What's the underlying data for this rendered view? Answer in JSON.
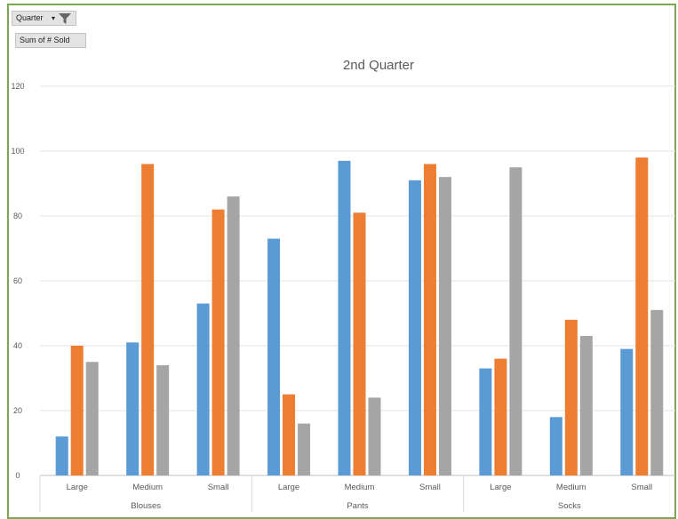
{
  "pivot": {
    "filter_field": "Quarter",
    "value_field": "Sum of # Sold"
  },
  "chart_data": {
    "type": "bar",
    "title": "2nd Quarter",
    "xlabel": "",
    "ylabel": "",
    "ylim": [
      0,
      120
    ],
    "yticks": [
      0,
      20,
      40,
      60,
      80,
      100,
      120
    ],
    "grid": true,
    "groups": [
      {
        "name": "Blouses",
        "categories": [
          "Large",
          "Medium",
          "Small"
        ]
      },
      {
        "name": "Pants",
        "categories": [
          "Large",
          "Medium",
          "Small"
        ]
      },
      {
        "name": "Socks",
        "categories": [
          "Large",
          "Medium",
          "Small"
        ]
      }
    ],
    "series": [
      {
        "color": "#5b9bd5",
        "values": [
          12,
          41,
          53,
          73,
          97,
          91,
          33,
          18,
          39
        ]
      },
      {
        "color": "#ed7d31",
        "values": [
          40,
          96,
          82,
          25,
          81,
          96,
          36,
          48,
          98
        ]
      },
      {
        "color": "#a5a5a5",
        "values": [
          35,
          34,
          86,
          16,
          24,
          92,
          95,
          43,
          51
        ]
      }
    ]
  }
}
